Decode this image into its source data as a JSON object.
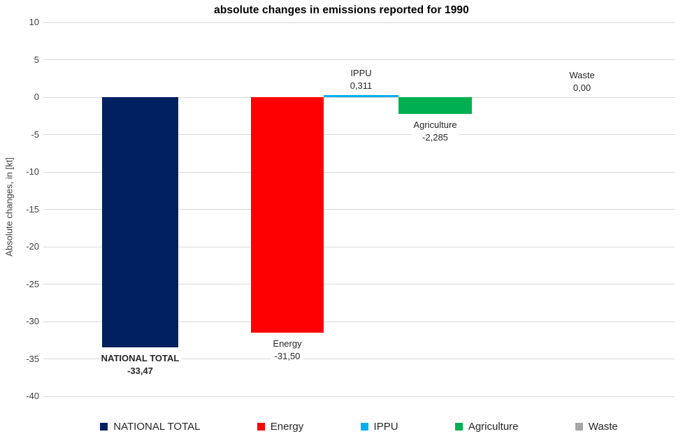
{
  "chart_data": {
    "type": "bar",
    "title": "absolute changes in emissions reported for 1990",
    "ylabel": "Absolute changes, in [kt]",
    "xlabel": "",
    "ylim": [
      -40,
      10
    ],
    "ytick_step": 5,
    "ytick_labels": [
      "10",
      "5",
      "0",
      "-5",
      "-10",
      "-15",
      "-20",
      "-25",
      "-30",
      "-35",
      "-40"
    ],
    "grid": true,
    "legend_position": "bottom",
    "decimal_separator": ",",
    "categories": [
      "NATIONAL TOTAL",
      "Energy",
      "IPPU",
      "Agriculture",
      "Waste"
    ],
    "values": [
      -33.47,
      -31.5,
      0.311,
      -2.285,
      0.0
    ],
    "series": [
      {
        "name": "NATIONAL TOTAL",
        "value": -33.47,
        "value_label": "-33,47",
        "color": "#002060",
        "label_bold": true
      },
      {
        "name": "Energy",
        "value": -31.5,
        "value_label": "-31,50",
        "color": "#ff0000",
        "label_bold": false
      },
      {
        "name": "IPPU",
        "value": 0.311,
        "value_label": "0,311",
        "color": "#00b0f0",
        "label_bold": false
      },
      {
        "name": "Agriculture",
        "value": -2.285,
        "value_label": "-2,285",
        "color": "#00b050",
        "label_bold": false
      },
      {
        "name": "Waste",
        "value": 0.0,
        "value_label": "0,00",
        "color": "#a6a6a6",
        "label_bold": false
      }
    ]
  },
  "colors": {
    "background": "#ffffff",
    "gridline": "#d9d9d9",
    "axis_text": "#404040",
    "label_text": "#262626",
    "title_text": "#000000"
  }
}
